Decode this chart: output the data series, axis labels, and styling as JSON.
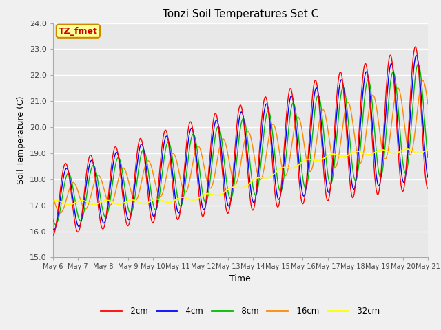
{
  "title": "Tonzi Soil Temperatures Set C",
  "xlabel": "Time",
  "ylabel": "Soil Temperature (C)",
  "ylim": [
    15.0,
    24.0
  ],
  "yticks": [
    15.0,
    16.0,
    17.0,
    18.0,
    19.0,
    20.0,
    21.0,
    22.0,
    23.0,
    24.0
  ],
  "n_points": 720,
  "series_colors": {
    "-2cm": "#ff0000",
    "-4cm": "#0000ff",
    "-8cm": "#00bb00",
    "-16cm": "#ff8800",
    "-32cm": "#ffff00"
  },
  "annotation_text": "TZ_fmet",
  "annotation_bg": "#ffff99",
  "annotation_border": "#cc8800",
  "plot_bg": "#e8e8e8",
  "fig_bg": "#f0f0f0",
  "grid_color": "#ffffff",
  "xtick_labels": [
    "May 6",
    "May 7",
    "May 8",
    "May 9",
    "May 10",
    "May 11",
    "May 12",
    "May 13",
    "May 14",
    "May 15",
    "May 16",
    "May 17",
    "May 18",
    "May 19",
    "May 20",
    "May 21"
  ]
}
